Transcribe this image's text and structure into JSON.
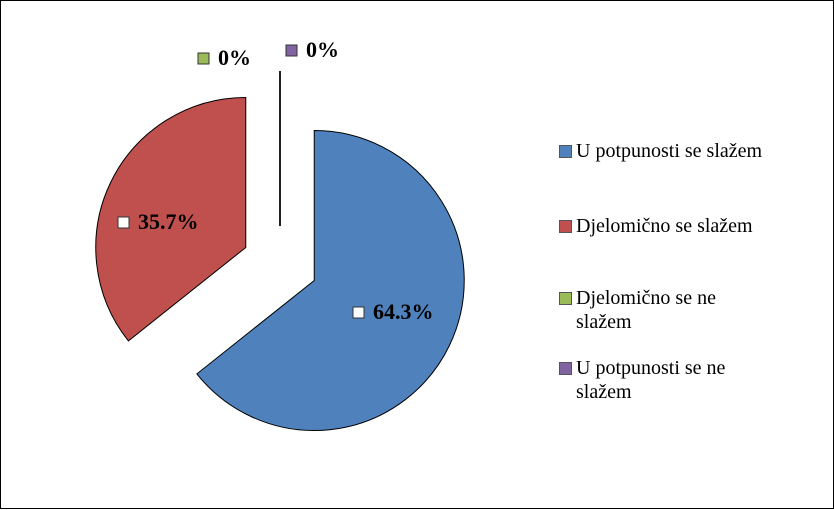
{
  "chart_data": {
    "type": "pie",
    "categories": [
      "U potpunosti se slažem",
      "Djelomično se slažem",
      "Djelomično se ne slažem",
      "U potpunosti se ne slažem"
    ],
    "values": [
      64.3,
      35.7,
      0,
      0
    ],
    "value_labels": [
      "64.3%",
      "35.7%",
      "0%",
      "0%"
    ],
    "colors": [
      "#4f81bd",
      "#c0504d",
      "#9bbb59",
      "#8064a2"
    ],
    "legend": "right"
  }
}
